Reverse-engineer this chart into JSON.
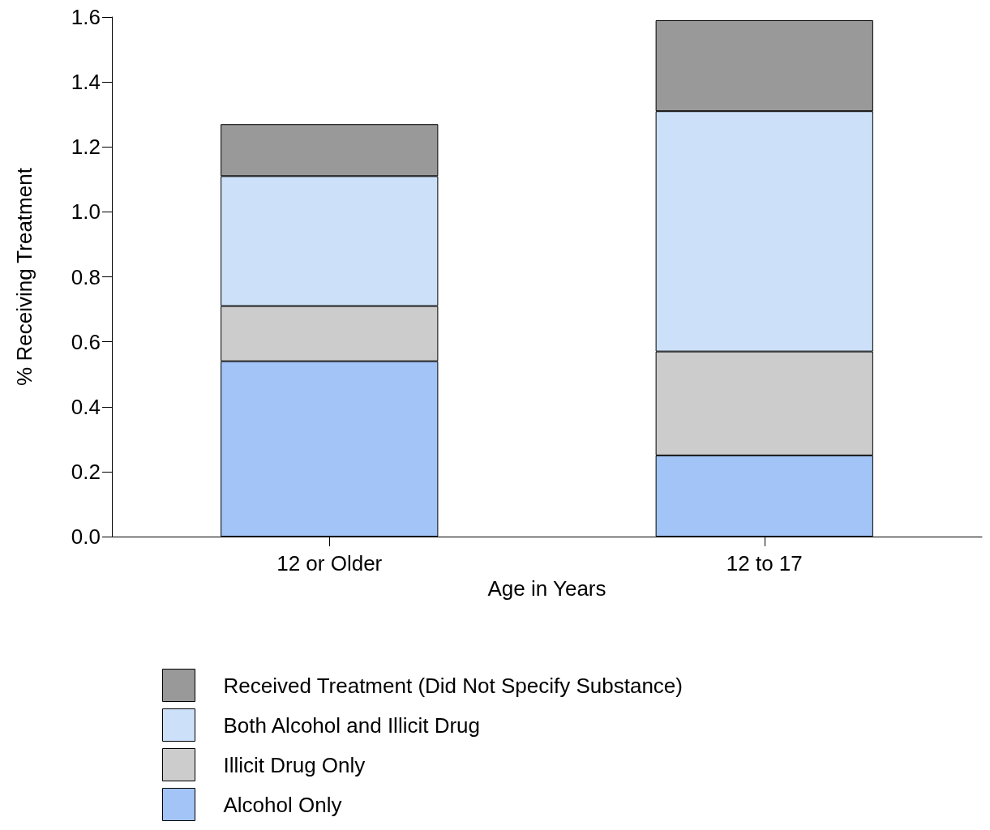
{
  "chart_data": {
    "type": "bar",
    "stacked": true,
    "xlabel": "Age in Years",
    "ylabel": "% Receiving Treatment",
    "categories": [
      "12 or Older",
      "12 to 17"
    ],
    "series": [
      {
        "name": "Alcohol Only",
        "color": "#a3c4f7",
        "values": [
          0.54,
          0.25
        ]
      },
      {
        "name": "Illicit Drug Only",
        "color": "#cccccc",
        "values": [
          0.17,
          0.32
        ]
      },
      {
        "name": "Both Alcohol and Illicit Drug",
        "color": "#cce1f9",
        "values": [
          0.4,
          0.74
        ]
      },
      {
        "name": "Received Treatment (Did Not Specify Substance)",
        "color": "#999999",
        "values": [
          0.16,
          0.28
        ]
      }
    ],
    "ylim": [
      0,
      1.6
    ],
    "yticks": [
      {
        "value": 0,
        "label": "0.0"
      },
      0.2,
      0.4,
      0.6,
      0.8,
      {
        "value": 1,
        "label": "1.0"
      },
      1.2,
      1.4,
      1.6
    ],
    "grid": false,
    "legend": "bottom"
  }
}
